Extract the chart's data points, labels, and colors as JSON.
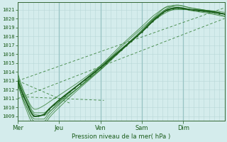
{
  "xlabel": "Pression niveau de la mer( hPa )",
  "ylim": [
    1008.5,
    1021.8
  ],
  "yticks": [
    1009,
    1010,
    1011,
    1012,
    1013,
    1014,
    1015,
    1016,
    1017,
    1018,
    1019,
    1020,
    1021
  ],
  "day_labels": [
    "Mer",
    "Jeu",
    "Ven",
    "Sam",
    "Dim"
  ],
  "day_positions": [
    0,
    48,
    96,
    144,
    192
  ],
  "total_hours": 240,
  "background_color": "#d4ecec",
  "grid_minor_color": "#b8d8d8",
  "grid_major_color": "#99c4c4",
  "line_color_dark": "#1a5c1a",
  "line_color_mid": "#2d7a2d",
  "line_color_light": "#4a9a4a",
  "text_color": "#1a5c1a",
  "axis_color": "#336633",
  "base_points_t": [
    0,
    8,
    20,
    30,
    36,
    50,
    70,
    96,
    120,
    144,
    160,
    175,
    185,
    200,
    220,
    240
  ],
  "base_points_v": [
    1013,
    1011,
    1009,
    1009.2,
    1009.8,
    1011,
    1012.5,
    1014.5,
    1016.5,
    1018.5,
    1020,
    1021,
    1021.2,
    1021,
    1020.8,
    1020.5
  ],
  "ensemble_offsets": [
    [
      0.5,
      0.3,
      0.2,
      -0.1,
      -0.3,
      -0.4,
      -0.3,
      -0.2,
      0.0,
      0.2,
      0.1,
      -0.1,
      -0.2,
      0.0,
      0.1,
      0.2
    ],
    [
      -0.5,
      -0.4,
      -0.6,
      -0.8,
      -0.7,
      -0.5,
      -0.3,
      0.0,
      0.3,
      0.4,
      0.2,
      0.1,
      0.0,
      -0.1,
      -0.2,
      -0.3
    ],
    [
      0.2,
      0.5,
      0.8,
      1.0,
      0.8,
      0.5,
      0.3,
      0.2,
      0.1,
      0.0,
      -0.1,
      -0.2,
      -0.1,
      0.0,
      0.1,
      0.0
    ],
    [
      -0.3,
      -0.8,
      -1.0,
      -1.2,
      -1.0,
      -0.8,
      -0.5,
      -0.3,
      -0.1,
      0.1,
      0.3,
      0.4,
      0.3,
      0.2,
      0.1,
      0.0
    ],
    [
      0.8,
      0.6,
      0.4,
      0.2,
      0.0,
      -0.2,
      -0.3,
      -0.2,
      -0.1,
      0.0,
      0.1,
      0.2,
      0.3,
      0.2,
      0.1,
      0.0
    ],
    [
      -0.2,
      -0.5,
      -0.3,
      -0.5,
      -0.4,
      -0.2,
      0.0,
      0.2,
      0.5,
      0.6,
      0.5,
      0.3,
      0.1,
      0.0,
      -0.1,
      -0.2
    ]
  ],
  "dashed_lines": [
    {
      "t": [
        0,
        240
      ],
      "v": [
        1013.0,
        1021.2
      ]
    },
    {
      "t": [
        0,
        240
      ],
      "v": [
        1011.0,
        1020.0
      ]
    },
    {
      "t": [
        0,
        60
      ],
      "v": [
        1013.0,
        1010.5
      ]
    },
    {
      "t": [
        5,
        100
      ],
      "v": [
        1011.2,
        1010.8
      ]
    }
  ]
}
